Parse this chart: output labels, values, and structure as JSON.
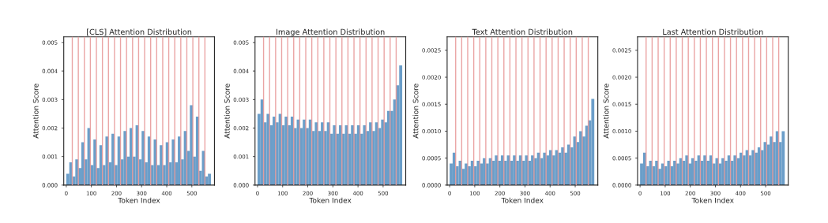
{
  "chart_data": [
    {
      "type": "histogram",
      "title": "[CLS] Attention Distribution",
      "xlabel": "Token Index",
      "ylabel": "Attention Score",
      "color": "#6399c6",
      "bins": [
        0,
        12,
        24,
        36,
        48,
        60,
        72,
        84,
        96,
        108,
        120,
        132,
        144,
        156,
        168,
        180,
        192,
        204,
        216,
        228,
        240,
        252,
        264,
        276,
        288,
        300,
        312,
        324,
        336,
        348,
        360,
        372,
        384,
        396,
        408,
        420,
        432,
        444,
        456,
        468,
        480,
        492,
        504,
        516,
        528,
        540,
        552,
        564,
        576
      ],
      "values": [
        0.0004,
        0.0008,
        0.0003,
        0.0009,
        0.0006,
        0.0015,
        0.0009,
        0.002,
        0.0007,
        0.0016,
        0.0006,
        0.0014,
        0.0007,
        0.0017,
        0.0008,
        0.0018,
        0.0007,
        0.0017,
        0.0009,
        0.0019,
        0.001,
        0.002,
        0.001,
        0.0021,
        0.0009,
        0.0019,
        0.0008,
        0.0017,
        0.0007,
        0.0016,
        0.0007,
        0.0014,
        0.0007,
        0.0015,
        0.0008,
        0.0016,
        0.0008,
        0.0017,
        0.0009,
        0.0019,
        0.0012,
        0.0028,
        0.001,
        0.0024,
        0.0005,
        0.0012,
        0.0003,
        0.0004
      ],
      "xlim": [
        -10,
        590
      ],
      "xticks": [
        0,
        100,
        200,
        300,
        400,
        500
      ],
      "ylim": [
        0,
        0.0052
      ],
      "yticks": [
        {
          "value": 0,
          "label": "0.000"
        },
        {
          "value": 0.001,
          "label": "0.001"
        },
        {
          "value": 0.002,
          "label": "0.002"
        },
        {
          "value": 0.003,
          "label": "0.003"
        },
        {
          "value": 0.004,
          "label": "0.004"
        },
        {
          "value": 0.005,
          "label": "0.005"
        }
      ],
      "ref_lines": [
        {
          "axis": "x",
          "value": 24,
          "color": "#e89a9a"
        },
        {
          "axis": "x",
          "value": 48,
          "color": "#e89a9a"
        },
        {
          "axis": "x",
          "value": 72,
          "color": "#e89a9a"
        },
        {
          "axis": "x",
          "value": 96,
          "color": "#e89a9a"
        },
        {
          "axis": "x",
          "value": 120,
          "color": "#e89a9a"
        },
        {
          "axis": "x",
          "value": 144,
          "color": "#e89a9a"
        },
        {
          "axis": "x",
          "value": 168,
          "color": "#e89a9a"
        },
        {
          "axis": "x",
          "value": 192,
          "color": "#e89a9a"
        },
        {
          "axis": "x",
          "value": 216,
          "color": "#e89a9a"
        },
        {
          "axis": "x",
          "value": 240,
          "color": "#e89a9a"
        },
        {
          "axis": "x",
          "value": 264,
          "color": "#e89a9a"
        },
        {
          "axis": "x",
          "value": 288,
          "color": "#e89a9a"
        },
        {
          "axis": "x",
          "value": 312,
          "color": "#e89a9a"
        },
        {
          "axis": "x",
          "value": 336,
          "color": "#e89a9a"
        },
        {
          "axis": "x",
          "value": 360,
          "color": "#e89a9a"
        },
        {
          "axis": "x",
          "value": 384,
          "color": "#e89a9a"
        },
        {
          "axis": "x",
          "value": 408,
          "color": "#e89a9a"
        },
        {
          "axis": "x",
          "value": 432,
          "color": "#e89a9a"
        },
        {
          "axis": "x",
          "value": 456,
          "color": "#e89a9a"
        },
        {
          "axis": "x",
          "value": 480,
          "color": "#e89a9a"
        },
        {
          "axis": "x",
          "value": 504,
          "color": "#e89a9a"
        },
        {
          "axis": "x",
          "value": 528,
          "color": "#e89a9a"
        },
        {
          "axis": "x",
          "value": 552,
          "color": "#e89a9a"
        }
      ]
    },
    {
      "type": "histogram",
      "title": "Image Attention Distribution",
      "xlabel": "Token Index",
      "ylabel": "Attention Score",
      "color": "#6399c6",
      "bins": [
        0,
        12,
        24,
        36,
        48,
        60,
        72,
        84,
        96,
        108,
        120,
        132,
        144,
        156,
        168,
        180,
        192,
        204,
        216,
        228,
        240,
        252,
        264,
        276,
        288,
        300,
        312,
        324,
        336,
        348,
        360,
        372,
        384,
        396,
        408,
        420,
        432,
        444,
        456,
        468,
        480,
        492,
        504,
        516,
        528,
        540,
        552,
        564,
        576
      ],
      "values": [
        0.0025,
        0.003,
        0.0022,
        0.0025,
        0.0021,
        0.0024,
        0.0022,
        0.0025,
        0.0021,
        0.0024,
        0.0021,
        0.0024,
        0.002,
        0.0023,
        0.002,
        0.0023,
        0.002,
        0.0023,
        0.0019,
        0.0022,
        0.0019,
        0.0022,
        0.0019,
        0.0022,
        0.0018,
        0.0021,
        0.0018,
        0.0021,
        0.0018,
        0.0021,
        0.0018,
        0.0021,
        0.0018,
        0.0021,
        0.0018,
        0.0021,
        0.0019,
        0.0022,
        0.0019,
        0.0022,
        0.002,
        0.0023,
        0.0022,
        0.0026,
        0.0026,
        0.003,
        0.0035,
        0.0042
      ],
      "xlim": [
        -10,
        590
      ],
      "xticks": [
        0,
        100,
        200,
        300,
        400,
        500
      ],
      "ylim": [
        0,
        0.0052
      ],
      "yticks": [
        {
          "value": 0,
          "label": "0.000"
        },
        {
          "value": 0.001,
          "label": "0.001"
        },
        {
          "value": 0.002,
          "label": "0.002"
        },
        {
          "value": 0.003,
          "label": "0.003"
        },
        {
          "value": 0.004,
          "label": "0.004"
        },
        {
          "value": 0.005,
          "label": "0.005"
        }
      ],
      "ref_lines": [
        {
          "axis": "x",
          "value": 24,
          "color": "#e89a9a"
        },
        {
          "axis": "x",
          "value": 48,
          "color": "#e89a9a"
        },
        {
          "axis": "x",
          "value": 72,
          "color": "#e89a9a"
        },
        {
          "axis": "x",
          "value": 96,
          "color": "#e89a9a"
        },
        {
          "axis": "x",
          "value": 120,
          "color": "#e89a9a"
        },
        {
          "axis": "x",
          "value": 144,
          "color": "#e89a9a"
        },
        {
          "axis": "x",
          "value": 168,
          "color": "#e89a9a"
        },
        {
          "axis": "x",
          "value": 192,
          "color": "#e89a9a"
        },
        {
          "axis": "x",
          "value": 216,
          "color": "#e89a9a"
        },
        {
          "axis": "x",
          "value": 240,
          "color": "#e89a9a"
        },
        {
          "axis": "x",
          "value": 264,
          "color": "#e89a9a"
        },
        {
          "axis": "x",
          "value": 288,
          "color": "#e89a9a"
        },
        {
          "axis": "x",
          "value": 312,
          "color": "#e89a9a"
        },
        {
          "axis": "x",
          "value": 336,
          "color": "#e89a9a"
        },
        {
          "axis": "x",
          "value": 360,
          "color": "#e89a9a"
        },
        {
          "axis": "x",
          "value": 384,
          "color": "#e89a9a"
        },
        {
          "axis": "x",
          "value": 408,
          "color": "#e89a9a"
        },
        {
          "axis": "x",
          "value": 432,
          "color": "#e89a9a"
        },
        {
          "axis": "x",
          "value": 456,
          "color": "#e89a9a"
        },
        {
          "axis": "x",
          "value": 480,
          "color": "#e89a9a"
        },
        {
          "axis": "x",
          "value": 504,
          "color": "#e89a9a"
        },
        {
          "axis": "x",
          "value": 528,
          "color": "#e89a9a"
        },
        {
          "axis": "x",
          "value": 552,
          "color": "#e89a9a"
        }
      ]
    },
    {
      "type": "histogram",
      "title": "Text Attention Distribution",
      "xlabel": "Token Index",
      "ylabel": "Attention Score",
      "color": "#6399c6",
      "bins": [
        0,
        12,
        24,
        36,
        48,
        60,
        72,
        84,
        96,
        108,
        120,
        132,
        144,
        156,
        168,
        180,
        192,
        204,
        216,
        228,
        240,
        252,
        264,
        276,
        288,
        300,
        312,
        324,
        336,
        348,
        360,
        372,
        384,
        396,
        408,
        420,
        432,
        444,
        456,
        468,
        480,
        492,
        504,
        516,
        528,
        540,
        552,
        564,
        576
      ],
      "values": [
        0.0004,
        0.0006,
        0.00035,
        0.00045,
        0.0003,
        0.0004,
        0.00035,
        0.00045,
        0.00035,
        0.00045,
        0.0004,
        0.0005,
        0.0004,
        0.0005,
        0.00045,
        0.00055,
        0.00045,
        0.00055,
        0.00045,
        0.00055,
        0.00045,
        0.00055,
        0.00045,
        0.00055,
        0.00045,
        0.00055,
        0.00045,
        0.00055,
        0.0005,
        0.0006,
        0.0005,
        0.0006,
        0.00055,
        0.00065,
        0.00055,
        0.00065,
        0.0006,
        0.0007,
        0.0006,
        0.00075,
        0.0007,
        0.0009,
        0.0008,
        0.001,
        0.0009,
        0.0011,
        0.0012,
        0.0016
      ],
      "xlim": [
        -10,
        590
      ],
      "xticks": [
        0,
        100,
        200,
        300,
        400,
        500
      ],
      "ylim": [
        0,
        0.00275
      ],
      "yticks": [
        {
          "value": 0,
          "label": "0.0000"
        },
        {
          "value": 0.0005,
          "label": "0.0005"
        },
        {
          "value": 0.001,
          "label": "0.0010"
        },
        {
          "value": 0.0015,
          "label": "0.0015"
        },
        {
          "value": 0.002,
          "label": "0.0020"
        },
        {
          "value": 0.0025,
          "label": "0.0025"
        }
      ],
      "ref_lines": [
        {
          "axis": "x",
          "value": 24,
          "color": "#e89a9a"
        },
        {
          "axis": "x",
          "value": 48,
          "color": "#e89a9a"
        },
        {
          "axis": "x",
          "value": 72,
          "color": "#e89a9a"
        },
        {
          "axis": "x",
          "value": 96,
          "color": "#e89a9a"
        },
        {
          "axis": "x",
          "value": 120,
          "color": "#e89a9a"
        },
        {
          "axis": "x",
          "value": 144,
          "color": "#e89a9a"
        },
        {
          "axis": "x",
          "value": 168,
          "color": "#e89a9a"
        },
        {
          "axis": "x",
          "value": 192,
          "color": "#e89a9a"
        },
        {
          "axis": "x",
          "value": 216,
          "color": "#e89a9a"
        },
        {
          "axis": "x",
          "value": 240,
          "color": "#e89a9a"
        },
        {
          "axis": "x",
          "value": 264,
          "color": "#e89a9a"
        },
        {
          "axis": "x",
          "value": 288,
          "color": "#e89a9a"
        },
        {
          "axis": "x",
          "value": 312,
          "color": "#e89a9a"
        },
        {
          "axis": "x",
          "value": 336,
          "color": "#e89a9a"
        },
        {
          "axis": "x",
          "value": 360,
          "color": "#e89a9a"
        },
        {
          "axis": "x",
          "value": 384,
          "color": "#e89a9a"
        },
        {
          "axis": "x",
          "value": 408,
          "color": "#e89a9a"
        },
        {
          "axis": "x",
          "value": 432,
          "color": "#e89a9a"
        },
        {
          "axis": "x",
          "value": 456,
          "color": "#e89a9a"
        },
        {
          "axis": "x",
          "value": 480,
          "color": "#e89a9a"
        },
        {
          "axis": "x",
          "value": 504,
          "color": "#e89a9a"
        },
        {
          "axis": "x",
          "value": 528,
          "color": "#e89a9a"
        },
        {
          "axis": "x",
          "value": 552,
          "color": "#e89a9a"
        }
      ]
    },
    {
      "type": "histogram",
      "title": "Last Attention Distribution",
      "xlabel": "Token Index",
      "ylabel": "Attention Score",
      "color": "#6399c6",
      "bins": [
        0,
        12,
        24,
        36,
        48,
        60,
        72,
        84,
        96,
        108,
        120,
        132,
        144,
        156,
        168,
        180,
        192,
        204,
        216,
        228,
        240,
        252,
        264,
        276,
        288,
        300,
        312,
        324,
        336,
        348,
        360,
        372,
        384,
        396,
        408,
        420,
        432,
        444,
        456,
        468,
        480,
        492,
        504,
        516,
        528,
        540,
        552,
        564,
        576
      ],
      "values": [
        0.0004,
        0.0006,
        0.00035,
        0.00045,
        0.00035,
        0.00045,
        0.0003,
        0.0004,
        0.00035,
        0.00045,
        0.00035,
        0.00045,
        0.0004,
        0.0005,
        0.00045,
        0.00055,
        0.0004,
        0.0005,
        0.00045,
        0.00055,
        0.00045,
        0.00055,
        0.00045,
        0.00055,
        0.0004,
        0.0005,
        0.0004,
        0.0005,
        0.00045,
        0.00055,
        0.00045,
        0.00055,
        0.0005,
        0.0006,
        0.00055,
        0.00065,
        0.00055,
        0.00065,
        0.0006,
        0.0007,
        0.00065,
        0.0008,
        0.00075,
        0.0009,
        0.0008,
        0.001,
        0.0008,
        0.001
      ],
      "xlim": [
        -10,
        590
      ],
      "xticks": [
        0,
        100,
        200,
        300,
        400,
        500
      ],
      "ylim": [
        0,
        0.00275
      ],
      "yticks": [
        {
          "value": 0,
          "label": "0.0000"
        },
        {
          "value": 0.0005,
          "label": "0.0005"
        },
        {
          "value": 0.001,
          "label": "0.0010"
        },
        {
          "value": 0.0015,
          "label": "0.0015"
        },
        {
          "value": 0.002,
          "label": "0.0020"
        },
        {
          "value": 0.0025,
          "label": "0.0025"
        }
      ],
      "ref_lines": [
        {
          "axis": "x",
          "value": 24,
          "color": "#e89a9a"
        },
        {
          "axis": "x",
          "value": 48,
          "color": "#e89a9a"
        },
        {
          "axis": "x",
          "value": 72,
          "color": "#e89a9a"
        },
        {
          "axis": "x",
          "value": 96,
          "color": "#e89a9a"
        },
        {
          "axis": "x",
          "value": 120,
          "color": "#e89a9a"
        },
        {
          "axis": "x",
          "value": 144,
          "color": "#e89a9a"
        },
        {
          "axis": "x",
          "value": 168,
          "color": "#e89a9a"
        },
        {
          "axis": "x",
          "value": 192,
          "color": "#e89a9a"
        },
        {
          "axis": "x",
          "value": 216,
          "color": "#e89a9a"
        },
        {
          "axis": "x",
          "value": 240,
          "color": "#e89a9a"
        },
        {
          "axis": "x",
          "value": 264,
          "color": "#e89a9a"
        },
        {
          "axis": "x",
          "value": 288,
          "color": "#e89a9a"
        },
        {
          "axis": "x",
          "value": 312,
          "color": "#e89a9a"
        },
        {
          "axis": "x",
          "value": 336,
          "color": "#e89a9a"
        },
        {
          "axis": "x",
          "value": 360,
          "color": "#e89a9a"
        },
        {
          "axis": "x",
          "value": 384,
          "color": "#e89a9a"
        },
        {
          "axis": "x",
          "value": 408,
          "color": "#e89a9a"
        },
        {
          "axis": "x",
          "value": 432,
          "color": "#e89a9a"
        },
        {
          "axis": "x",
          "value": 456,
          "color": "#e89a9a"
        },
        {
          "axis": "x",
          "value": 480,
          "color": "#e89a9a"
        },
        {
          "axis": "x",
          "value": 504,
          "color": "#e89a9a"
        },
        {
          "axis": "x",
          "value": 528,
          "color": "#e89a9a"
        },
        {
          "axis": "x",
          "value": 552,
          "color": "#e89a9a"
        }
      ]
    }
  ]
}
